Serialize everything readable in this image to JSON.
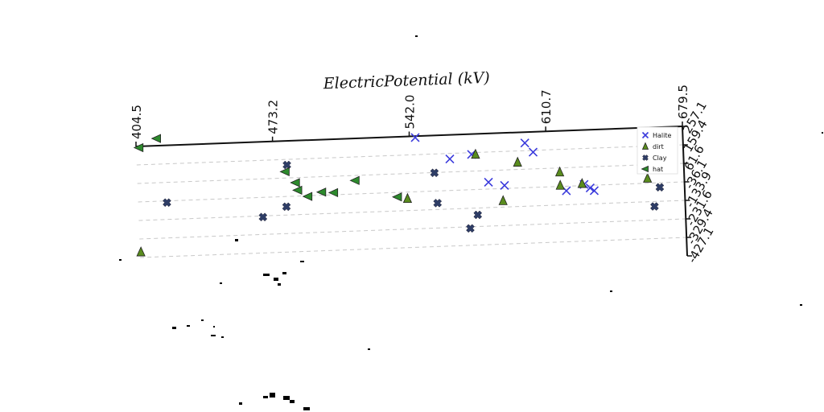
{
  "chart_data": {
    "type": "scatter",
    "title": "",
    "xlabel": "ElectricPotential (kV)",
    "ylabel": "",
    "x_ticks": [
      "404.5",
      "473.2",
      "542.0",
      "610.7",
      "679.5"
    ],
    "y_ticks": [
      "257.1",
      "159.4",
      "61.6",
      "-36.1",
      "-133.9",
      "-231.6",
      "-329.4",
      "-427.1"
    ],
    "xlim": [
      404.5,
      679.5
    ],
    "ylim": [
      -427.1,
      257.1
    ],
    "grid": true,
    "legend_position": "top-right",
    "series": [
      {
        "name": "Halite",
        "marker": "x",
        "color": "#3b3bdc",
        "points": [
          [
            545,
            250
          ],
          [
            562,
            130
          ],
          [
            573,
            150
          ],
          [
            581,
            0
          ],
          [
            589,
            -20
          ],
          [
            600,
            200
          ],
          [
            604,
            150
          ],
          [
            620,
            -60
          ],
          [
            629,
            -30
          ],
          [
            632,
            -50
          ],
          [
            634,
            -65
          ]
        ]
      },
      {
        "name": "dirt",
        "marker": "^",
        "color": "#5a8c1e",
        "points": [
          [
            405,
            -300
          ],
          [
            540,
            -70
          ],
          [
            575,
            150
          ],
          [
            588,
            -100
          ],
          [
            596,
            100
          ],
          [
            617,
            40
          ],
          [
            617,
            -30
          ],
          [
            628,
            -25
          ],
          [
            661,
            -10
          ]
        ]
      },
      {
        "name": "Clay",
        "marker": "X",
        "color": "#2e3d66",
        "points": [
          [
            419,
            -45
          ],
          [
            467,
            -140
          ],
          [
            480,
            130
          ],
          [
            479,
            -90
          ],
          [
            554,
            60
          ],
          [
            555,
            -100
          ],
          [
            575,
            -170
          ],
          [
            571,
            -240
          ],
          [
            667,
            -60
          ],
          [
            664,
            -160
          ]
        ]
      },
      {
        "name": "hat",
        "marker": "<",
        "color": "#2d8a2d",
        "points": [
          [
            406,
            250
          ],
          [
            415,
            295
          ],
          [
            479,
            95
          ],
          [
            484,
            35
          ],
          [
            485,
            -5
          ],
          [
            490,
            -40
          ],
          [
            497,
            -20
          ],
          [
            503,
            -25
          ],
          [
            514,
            35
          ],
          [
            535,
            -60
          ]
        ]
      }
    ]
  }
}
